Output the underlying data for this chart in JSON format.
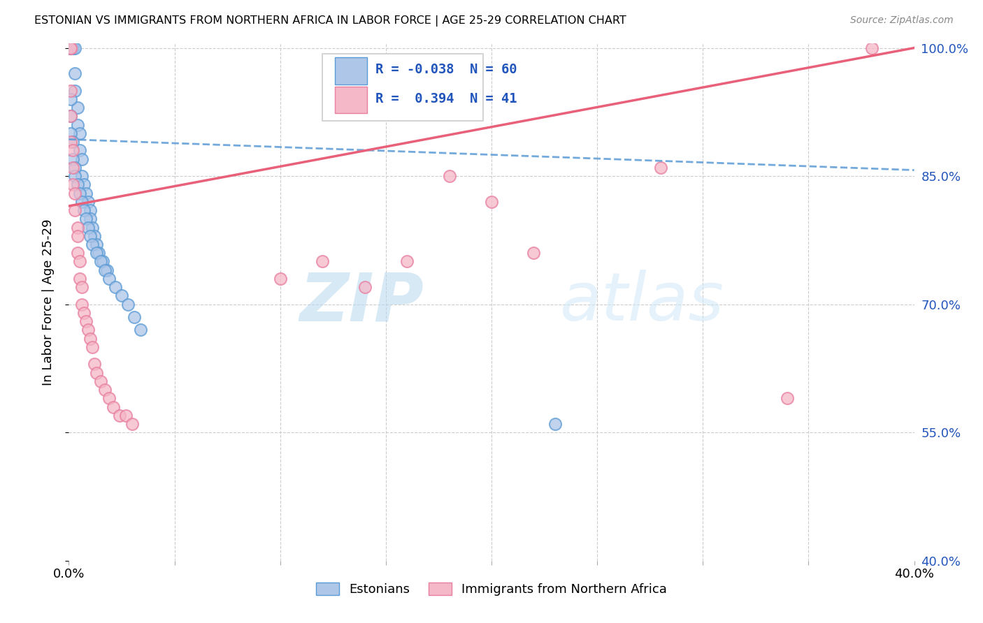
{
  "title": "ESTONIAN VS IMMIGRANTS FROM NORTHERN AFRICA IN LABOR FORCE | AGE 25-29 CORRELATION CHART",
  "source": "Source: ZipAtlas.com",
  "ylabel": "In Labor Force | Age 25-29",
  "x_min": 0.0,
  "x_max": 0.4,
  "y_min": 0.4,
  "y_max": 1.005,
  "R_estonian": -0.038,
  "N_estonian": 60,
  "R_immigrant": 0.394,
  "N_immigrant": 41,
  "estonian_color": "#aec6e8",
  "estonian_edge_color": "#5b9bd5",
  "immigrant_color": "#f4b8c8",
  "immigrant_edge_color": "#e87fa0",
  "trend_estonian_color": "#5b9bd5",
  "trend_immigrant_color": "#e8607a",
  "blue_text_color": "#2255bb",
  "watermark_color": "#d8eaf8",
  "estonian_x": [
    0.001,
    0.001,
    0.001,
    0.001,
    0.001,
    0.001,
    0.001,
    0.001,
    0.001,
    0.001,
    0.001,
    0.002,
    0.002,
    0.002,
    0.002,
    0.003,
    0.003,
    0.003,
    0.004,
    0.004,
    0.005,
    0.005,
    0.006,
    0.006,
    0.007,
    0.008,
    0.009,
    0.01,
    0.01,
    0.011,
    0.012,
    0.013,
    0.014,
    0.016,
    0.018,
    0.001,
    0.001,
    0.001,
    0.002,
    0.002,
    0.003,
    0.003,
    0.004,
    0.005,
    0.006,
    0.007,
    0.008,
    0.009,
    0.01,
    0.011,
    0.013,
    0.015,
    0.017,
    0.019,
    0.022,
    0.025,
    0.028,
    0.031,
    0.034,
    0.23
  ],
  "estonian_y": [
    1.0,
    1.0,
    1.0,
    1.0,
    1.0,
    1.0,
    1.0,
    1.0,
    1.0,
    1.0,
    1.0,
    1.0,
    1.0,
    1.0,
    1.0,
    1.0,
    0.97,
    0.95,
    0.93,
    0.91,
    0.9,
    0.88,
    0.87,
    0.85,
    0.84,
    0.83,
    0.82,
    0.81,
    0.8,
    0.79,
    0.78,
    0.77,
    0.76,
    0.75,
    0.74,
    0.94,
    0.92,
    0.9,
    0.89,
    0.87,
    0.86,
    0.85,
    0.84,
    0.83,
    0.82,
    0.81,
    0.8,
    0.79,
    0.78,
    0.77,
    0.76,
    0.75,
    0.74,
    0.73,
    0.72,
    0.71,
    0.7,
    0.685,
    0.67,
    0.56
  ],
  "immigrant_x": [
    0.001,
    0.001,
    0.001,
    0.001,
    0.001,
    0.002,
    0.002,
    0.002,
    0.003,
    0.003,
    0.004,
    0.004,
    0.004,
    0.005,
    0.005,
    0.006,
    0.006,
    0.007,
    0.008,
    0.009,
    0.01,
    0.011,
    0.012,
    0.013,
    0.015,
    0.017,
    0.019,
    0.021,
    0.024,
    0.027,
    0.03,
    0.1,
    0.12,
    0.14,
    0.16,
    0.18,
    0.2,
    0.22,
    0.28,
    0.34,
    0.38
  ],
  "immigrant_y": [
    1.0,
    1.0,
    0.95,
    0.92,
    0.89,
    0.88,
    0.86,
    0.84,
    0.83,
    0.81,
    0.79,
    0.78,
    0.76,
    0.75,
    0.73,
    0.72,
    0.7,
    0.69,
    0.68,
    0.67,
    0.66,
    0.65,
    0.63,
    0.62,
    0.61,
    0.6,
    0.59,
    0.58,
    0.57,
    0.57,
    0.56,
    0.73,
    0.75,
    0.72,
    0.75,
    0.85,
    0.82,
    0.76,
    0.86,
    0.59,
    1.0
  ],
  "trend_est_x0": 0.0,
  "trend_est_x1": 0.4,
  "trend_est_y0": 0.893,
  "trend_est_y1": 0.857,
  "trend_imm_x0": 0.0,
  "trend_imm_x1": 0.4,
  "trend_imm_y0": 0.815,
  "trend_imm_y1": 1.0
}
